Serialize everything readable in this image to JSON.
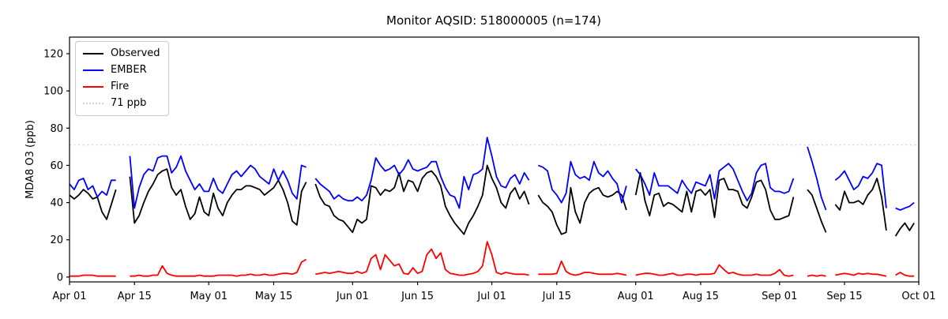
{
  "figure": {
    "title": "Monitor AQSID: 518000005 (n=174)"
  },
  "legend": {
    "items": [
      {
        "label": "Observed",
        "color": "#000000",
        "line_style": "solid"
      },
      {
        "label": "EMBER",
        "color": "#0000ff",
        "line_style": "solid"
      },
      {
        "label": "Fire",
        "color": "#ff0000",
        "line_style": "solid"
      },
      {
        "label": "71 ppb",
        "color": "#d3d3d3",
        "line_style": "dotted"
      }
    ]
  },
  "chart_data": {
    "type": "line",
    "title": "Monitor AQSID: 518000005 (n=174)",
    "xlabel": "",
    "ylabel": "MDA8 O3 (ppb)",
    "n_points": 174,
    "ylim": [
      0,
      120
    ],
    "yticks": [
      0,
      20,
      40,
      60,
      80,
      100,
      120
    ],
    "x_tick_labels": [
      "Apr 01",
      "Apr 15",
      "May 01",
      "May 15",
      "Jun 01",
      "Jun 15",
      "Jul 01",
      "Jul 15",
      "Aug 01",
      "Aug 15",
      "Sep 01",
      "Sep 15",
      "Oct 01"
    ],
    "x_tick_days": [
      0,
      14,
      30,
      44,
      61,
      75,
      91,
      105,
      122,
      136,
      153,
      167,
      183
    ],
    "x_unit": "days since Apr 01 (daily values, null = missing day)",
    "grid": false,
    "legend_position": "upper left",
    "threshold": {
      "label": "71 ppb",
      "value": 71,
      "color": "#d3d3d3",
      "style": "dotted"
    },
    "series": [
      {
        "name": "Observed",
        "color": "#000000",
        "values": [
          44,
          42,
          44,
          47,
          45,
          42,
          43,
          35,
          31,
          39,
          47,
          null,
          null,
          54,
          29,
          33,
          40,
          46,
          50,
          55,
          57,
          58,
          48,
          44,
          47,
          38,
          31,
          34,
          43,
          35,
          33,
          45,
          37,
          33,
          40,
          44,
          47,
          47,
          49,
          49,
          48,
          47,
          44,
          46,
          48,
          52,
          47,
          40,
          30,
          28,
          46,
          51,
          null,
          50,
          43,
          39,
          38,
          33,
          31,
          30,
          27,
          24,
          31,
          29,
          31,
          49,
          48,
          44,
          47,
          46,
          48,
          56,
          46,
          52,
          51,
          46,
          53,
          56,
          57,
          54,
          49,
          38,
          33,
          29,
          26,
          23,
          29,
          33,
          38,
          44,
          60,
          53,
          48,
          40,
          37,
          45,
          48,
          42,
          46,
          39,
          null,
          44,
          40,
          38,
          35,
          28,
          23,
          24,
          48,
          35,
          29,
          40,
          45,
          47,
          48,
          44,
          43,
          44,
          46,
          44,
          36,
          null,
          44,
          56,
          41,
          33,
          44,
          45,
          38,
          40,
          39,
          37,
          35,
          46,
          35,
          46,
          47,
          44,
          47,
          32,
          52,
          53,
          47,
          47,
          46,
          39,
          37,
          43,
          51,
          52,
          47,
          36,
          31,
          31,
          32,
          33,
          43,
          null,
          null,
          47,
          44,
          37,
          30,
          24,
          null,
          39,
          36,
          46,
          40,
          40,
          41,
          39,
          44,
          47,
          53,
          43,
          25,
          null,
          22,
          26,
          29,
          25,
          29
        ]
      },
      {
        "name": "EMBER",
        "color": "#0000ff",
        "values": [
          50,
          47,
          52,
          53,
          47,
          49,
          43,
          46,
          44,
          52,
          52,
          null,
          null,
          65,
          37,
          48,
          55,
          58,
          57,
          64,
          65,
          65,
          56,
          59,
          65,
          57,
          52,
          47,
          50,
          46,
          46,
          53,
          47,
          45,
          50,
          55,
          57,
          54,
          57,
          60,
          58,
          54,
          52,
          50,
          58,
          52,
          57,
          52,
          45,
          42,
          60,
          59,
          null,
          53,
          50,
          48,
          46,
          42,
          44,
          42,
          41,
          41,
          43,
          41,
          44,
          52,
          64,
          60,
          57,
          58,
          60,
          55,
          58,
          63,
          58,
          57,
          58,
          59,
          62,
          62,
          54,
          48,
          44,
          43,
          37,
          54,
          47,
          55,
          56,
          58,
          75,
          65,
          54,
          49,
          48,
          53,
          55,
          50,
          56,
          52,
          null,
          60,
          59,
          57,
          47,
          44,
          40,
          45,
          62,
          55,
          53,
          54,
          52,
          62,
          56,
          54,
          57,
          53,
          50,
          40,
          49,
          null,
          58,
          55,
          50,
          44,
          56,
          49,
          49,
          49,
          47,
          45,
          52,
          48,
          45,
          51,
          50,
          49,
          55,
          42,
          57,
          59,
          61,
          58,
          52,
          46,
          41,
          45,
          56,
          60,
          61,
          48,
          46,
          46,
          45,
          46,
          53,
          null,
          null,
          70,
          62,
          53,
          43,
          36,
          null,
          52,
          54,
          57,
          52,
          47,
          49,
          54,
          53,
          56,
          61,
          60,
          37,
          null,
          37,
          36,
          37,
          38,
          40
        ]
      },
      {
        "name": "Fire",
        "color": "#ff0000",
        "values": [
          0.5,
          0.5,
          0.5,
          1,
          1,
          1,
          0.5,
          0.5,
          0.5,
          0.5,
          0.5,
          null,
          null,
          0.5,
          0.5,
          1,
          0.5,
          0.5,
          1,
          1,
          6,
          2,
          1,
          0.5,
          0.5,
          0.5,
          0.5,
          0.5,
          1,
          0.5,
          0.5,
          0.5,
          1,
          1,
          1,
          1,
          0.5,
          1,
          1,
          1.5,
          1,
          1,
          1.5,
          1,
          1,
          1.5,
          2,
          2,
          1.5,
          2.5,
          8,
          9.5,
          null,
          1.5,
          2,
          2.5,
          2,
          2.5,
          3,
          2.5,
          2,
          2,
          3,
          2,
          3,
          10,
          12,
          4,
          12,
          9,
          6,
          7,
          2,
          1.5,
          5,
          2,
          3,
          12,
          15,
          10,
          13,
          4,
          2,
          1.5,
          1,
          1,
          1.5,
          2,
          3,
          6,
          19,
          12,
          2.5,
          1.5,
          2.5,
          2,
          1.5,
          1.5,
          1.5,
          1,
          null,
          1.5,
          1.5,
          1.5,
          1.5,
          2,
          8.5,
          3,
          1.5,
          1,
          1.5,
          2.5,
          2.5,
          2,
          1.5,
          1.5,
          1.5,
          1.5,
          2,
          1.5,
          1,
          null,
          1,
          1.5,
          2,
          2,
          1.5,
          1,
          1,
          1.5,
          2,
          1,
          1,
          1.5,
          1.5,
          1,
          1.5,
          1.5,
          1.5,
          2,
          6.5,
          4,
          2,
          2.5,
          1.5,
          1,
          1,
          1,
          1.5,
          1,
          1,
          1,
          2,
          4,
          1,
          0.5,
          1,
          null,
          null,
          0.5,
          1,
          0.5,
          1,
          0.5,
          null,
          1,
          1.5,
          2,
          1.5,
          1,
          2,
          1.5,
          2,
          1.5,
          1.5,
          1,
          0.5,
          null,
          1,
          2.5,
          1,
          0.5,
          0.5
        ]
      }
    ]
  }
}
